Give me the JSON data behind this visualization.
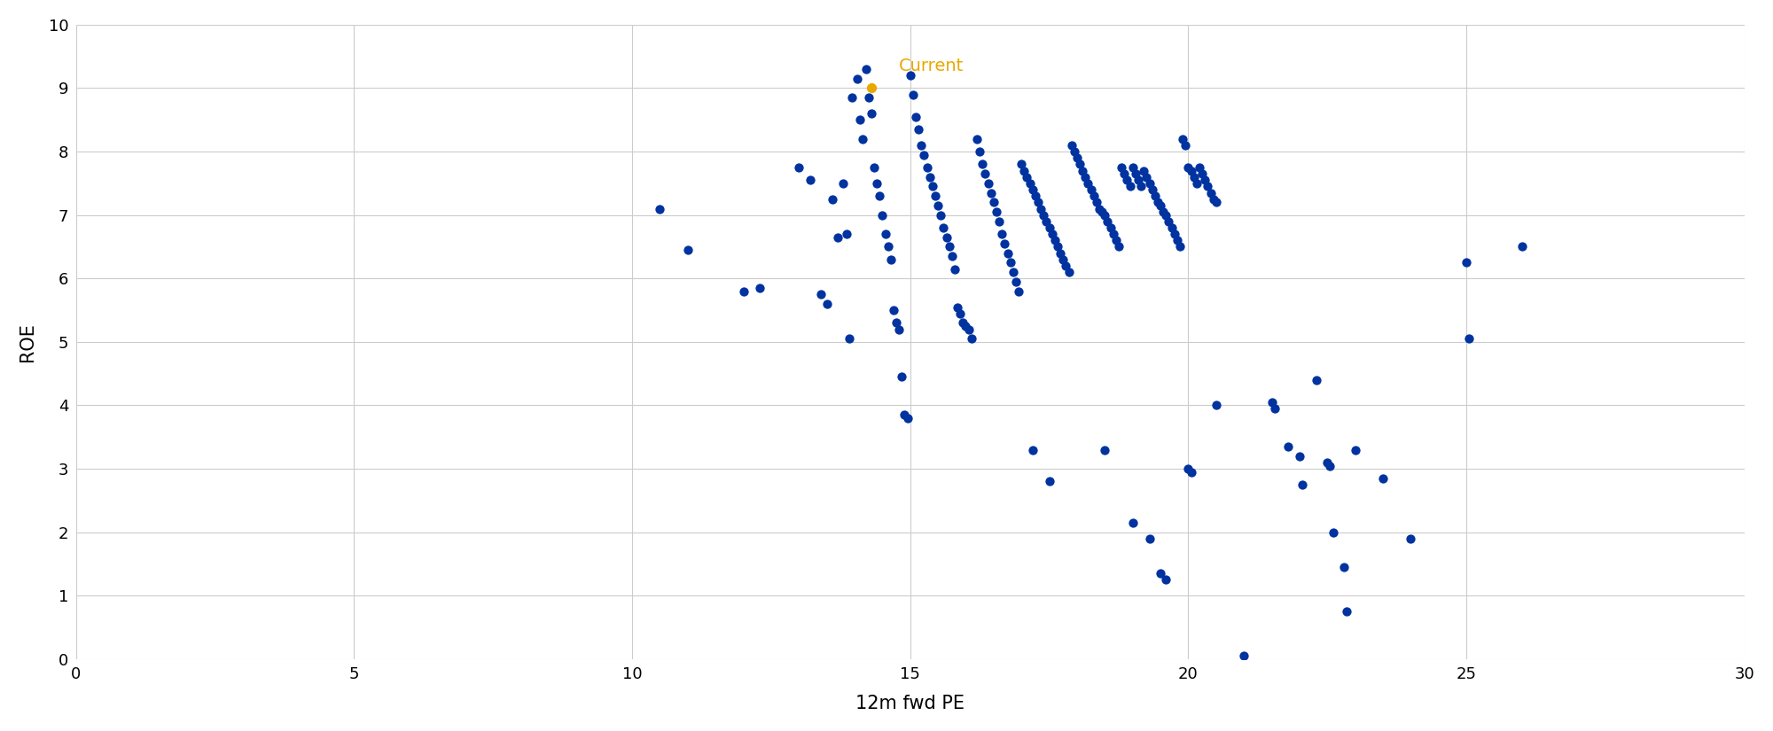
{
  "title": "",
  "xlabel": "12m fwd PE",
  "ylabel": "ROE",
  "xlim": [
    0,
    30
  ],
  "ylim": [
    0,
    10
  ],
  "xticks": [
    0,
    5,
    10,
    15,
    20,
    25,
    30
  ],
  "yticks": [
    0,
    1,
    2,
    3,
    4,
    5,
    6,
    7,
    8,
    9,
    10
  ],
  "dot_color": "#0033A0",
  "current_color": "#E8A800",
  "current_label": "Current",
  "dot_size": 55,
  "background_color": "#ffffff",
  "grid_color": "#cccccc",
  "blue_points": [
    [
      10.5,
      7.1
    ],
    [
      11.0,
      6.45
    ],
    [
      12.0,
      5.8
    ],
    [
      12.3,
      5.85
    ],
    [
      13.0,
      7.75
    ],
    [
      13.2,
      7.55
    ],
    [
      13.4,
      5.75
    ],
    [
      13.5,
      5.6
    ],
    [
      13.6,
      7.25
    ],
    [
      13.7,
      6.65
    ],
    [
      13.8,
      7.5
    ],
    [
      13.85,
      6.7
    ],
    [
      13.9,
      5.05
    ],
    [
      13.95,
      8.85
    ],
    [
      14.05,
      9.15
    ],
    [
      14.1,
      8.5
    ],
    [
      14.15,
      8.2
    ],
    [
      14.2,
      9.3
    ],
    [
      14.25,
      8.85
    ],
    [
      14.3,
      8.6
    ],
    [
      14.35,
      7.75
    ],
    [
      14.4,
      7.5
    ],
    [
      14.45,
      7.3
    ],
    [
      14.5,
      7.0
    ],
    [
      14.55,
      6.7
    ],
    [
      14.6,
      6.5
    ],
    [
      14.65,
      6.3
    ],
    [
      14.7,
      5.5
    ],
    [
      14.75,
      5.3
    ],
    [
      14.8,
      5.2
    ],
    [
      14.85,
      4.45
    ],
    [
      14.9,
      3.85
    ],
    [
      14.95,
      3.8
    ],
    [
      15.0,
      9.2
    ],
    [
      15.05,
      8.9
    ],
    [
      15.1,
      8.55
    ],
    [
      15.15,
      8.35
    ],
    [
      15.2,
      8.1
    ],
    [
      15.25,
      7.95
    ],
    [
      15.3,
      7.75
    ],
    [
      15.35,
      7.6
    ],
    [
      15.4,
      7.45
    ],
    [
      15.45,
      7.3
    ],
    [
      15.5,
      7.15
    ],
    [
      15.55,
      7.0
    ],
    [
      15.6,
      6.8
    ],
    [
      15.65,
      6.65
    ],
    [
      15.7,
      6.5
    ],
    [
      15.75,
      6.35
    ],
    [
      15.8,
      6.15
    ],
    [
      15.85,
      5.55
    ],
    [
      15.9,
      5.45
    ],
    [
      15.95,
      5.3
    ],
    [
      16.0,
      5.25
    ],
    [
      16.05,
      5.2
    ],
    [
      16.1,
      5.05
    ],
    [
      16.2,
      8.2
    ],
    [
      16.25,
      8.0
    ],
    [
      16.3,
      7.8
    ],
    [
      16.35,
      7.65
    ],
    [
      16.4,
      7.5
    ],
    [
      16.45,
      7.35
    ],
    [
      16.5,
      7.2
    ],
    [
      16.55,
      7.05
    ],
    [
      16.6,
      6.9
    ],
    [
      16.65,
      6.7
    ],
    [
      16.7,
      6.55
    ],
    [
      16.75,
      6.4
    ],
    [
      16.8,
      6.25
    ],
    [
      16.85,
      6.1
    ],
    [
      16.9,
      5.95
    ],
    [
      16.95,
      5.8
    ],
    [
      17.0,
      7.8
    ],
    [
      17.05,
      7.7
    ],
    [
      17.1,
      7.6
    ],
    [
      17.15,
      7.5
    ],
    [
      17.2,
      7.4
    ],
    [
      17.25,
      7.3
    ],
    [
      17.3,
      7.2
    ],
    [
      17.35,
      7.1
    ],
    [
      17.4,
      7.0
    ],
    [
      17.45,
      6.9
    ],
    [
      17.5,
      6.8
    ],
    [
      17.55,
      6.7
    ],
    [
      17.6,
      6.6
    ],
    [
      17.65,
      6.5
    ],
    [
      17.7,
      6.4
    ],
    [
      17.75,
      6.3
    ],
    [
      17.8,
      6.2
    ],
    [
      17.85,
      6.1
    ],
    [
      17.9,
      8.1
    ],
    [
      17.95,
      8.0
    ],
    [
      18.0,
      7.9
    ],
    [
      18.05,
      7.8
    ],
    [
      18.1,
      7.7
    ],
    [
      18.15,
      7.6
    ],
    [
      18.2,
      7.5
    ],
    [
      18.25,
      7.4
    ],
    [
      18.3,
      7.3
    ],
    [
      18.35,
      7.2
    ],
    [
      18.4,
      7.1
    ],
    [
      18.45,
      7.05
    ],
    [
      18.5,
      7.0
    ],
    [
      18.55,
      6.9
    ],
    [
      18.6,
      6.8
    ],
    [
      18.65,
      6.7
    ],
    [
      18.7,
      6.6
    ],
    [
      18.75,
      6.5
    ],
    [
      18.8,
      7.75
    ],
    [
      18.85,
      7.65
    ],
    [
      18.9,
      7.55
    ],
    [
      18.95,
      7.45
    ],
    [
      19.0,
      7.75
    ],
    [
      19.05,
      7.65
    ],
    [
      19.1,
      7.55
    ],
    [
      19.15,
      7.45
    ],
    [
      19.2,
      7.7
    ],
    [
      19.25,
      7.6
    ],
    [
      19.3,
      7.5
    ],
    [
      19.35,
      7.4
    ],
    [
      19.4,
      7.3
    ],
    [
      19.45,
      7.2
    ],
    [
      19.5,
      7.15
    ],
    [
      19.55,
      7.05
    ],
    [
      19.6,
      7.0
    ],
    [
      19.65,
      6.9
    ],
    [
      19.7,
      6.8
    ],
    [
      19.75,
      6.7
    ],
    [
      19.8,
      6.6
    ],
    [
      19.85,
      6.5
    ],
    [
      19.9,
      8.2
    ],
    [
      19.95,
      8.1
    ],
    [
      20.0,
      7.75
    ],
    [
      20.05,
      7.7
    ],
    [
      20.1,
      7.6
    ],
    [
      20.15,
      7.5
    ],
    [
      20.2,
      7.75
    ],
    [
      20.25,
      7.65
    ],
    [
      20.3,
      7.55
    ],
    [
      20.35,
      7.45
    ],
    [
      20.4,
      7.35
    ],
    [
      20.45,
      7.25
    ],
    [
      20.5,
      7.2
    ],
    [
      17.2,
      3.3
    ],
    [
      17.5,
      2.8
    ],
    [
      18.5,
      3.3
    ],
    [
      19.0,
      2.15
    ],
    [
      19.3,
      1.9
    ],
    [
      19.5,
      1.35
    ],
    [
      19.6,
      1.25
    ],
    [
      20.0,
      3.0
    ],
    [
      20.05,
      2.95
    ],
    [
      20.5,
      4.0
    ],
    [
      21.0,
      0.05
    ],
    [
      21.5,
      4.05
    ],
    [
      21.55,
      3.95
    ],
    [
      21.8,
      3.35
    ],
    [
      22.0,
      3.2
    ],
    [
      22.05,
      2.75
    ],
    [
      22.3,
      4.4
    ],
    [
      22.5,
      3.1
    ],
    [
      22.55,
      3.05
    ],
    [
      22.6,
      2.0
    ],
    [
      22.8,
      1.45
    ],
    [
      22.85,
      0.75
    ],
    [
      23.0,
      3.3
    ],
    [
      23.5,
      2.85
    ],
    [
      24.0,
      1.9
    ],
    [
      25.0,
      6.25
    ],
    [
      25.05,
      5.05
    ],
    [
      26.0,
      6.5
    ]
  ],
  "current_point": [
    14.3,
    9.0
  ]
}
